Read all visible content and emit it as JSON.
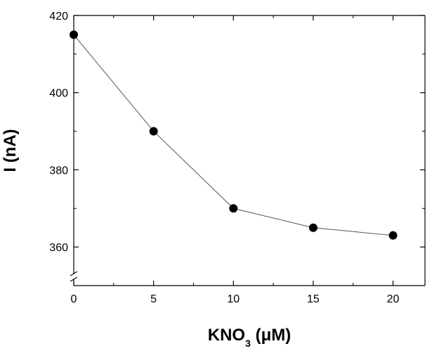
{
  "chart_data": {
    "type": "line",
    "title": "",
    "xlabel": {
      "main": "KNO",
      "sub": "3",
      "unit": " (μM)"
    },
    "ylabel": "I (nA)",
    "x": [
      0,
      5,
      10,
      15,
      20
    ],
    "series": [
      {
        "values": [
          415,
          390,
          370,
          365,
          363
        ]
      }
    ],
    "xlim": [
      0,
      22
    ],
    "ylim": [
      350,
      420
    ],
    "xticks": [
      0,
      5,
      10,
      15,
      20
    ],
    "xtick_labels": [
      "0",
      "5",
      "10",
      "15",
      "20"
    ],
    "yticks": [
      360,
      380,
      400,
      420
    ],
    "ytick_labels": [
      "360",
      "380",
      "400",
      "420"
    ],
    "y_axis_break": true,
    "grid": false,
    "legend": "none",
    "colors": {
      "line": "#555555",
      "marker": "#000000",
      "axis": "#000000"
    }
  }
}
